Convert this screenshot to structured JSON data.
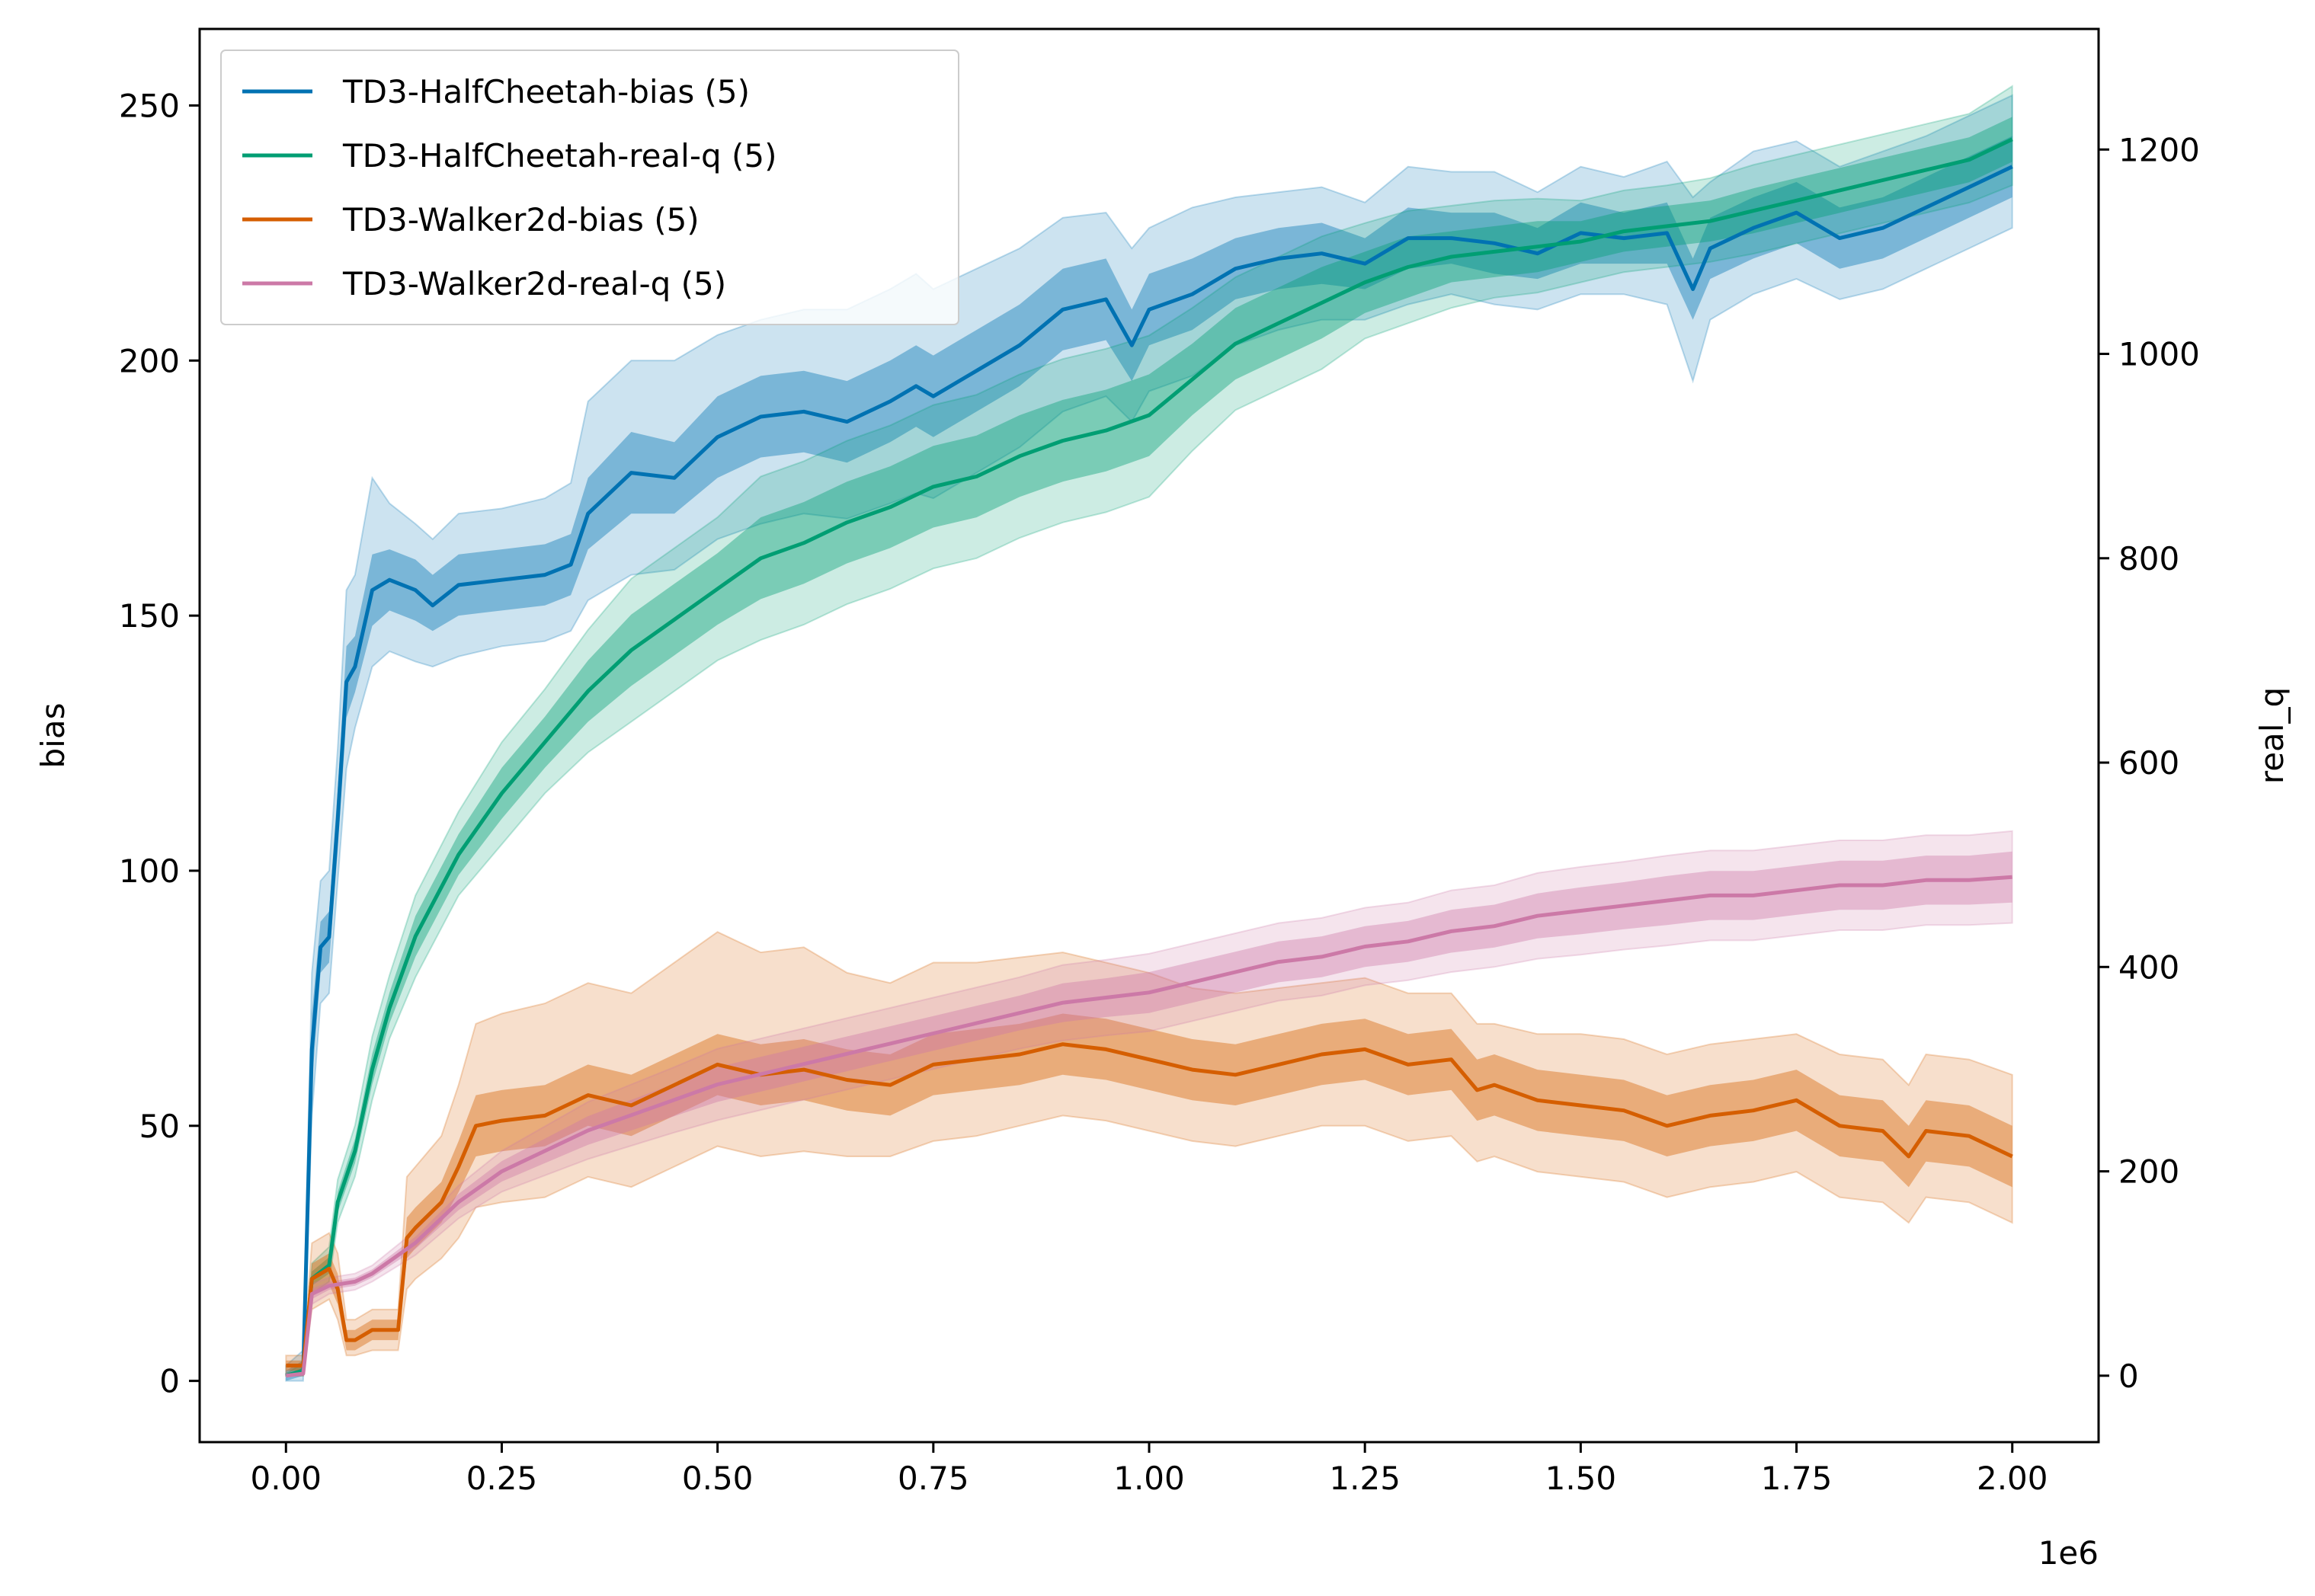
{
  "chart_data": {
    "type": "line",
    "title": "",
    "xlabel": "",
    "x_offset_label": "1e6",
    "ylabel_left": "bias",
    "ylabel_right": "real_q",
    "xlim": [
      -0.1,
      2.1
    ],
    "ylim_left": [
      -12,
      265
    ],
    "ylim_right": [
      -65,
      1318
    ],
    "x_ticks": [
      "0.00",
      "0.25",
      "0.50",
      "0.75",
      "1.00",
      "1.25",
      "1.50",
      "1.75",
      "2.00"
    ],
    "y_left_ticks": [
      "0",
      "50",
      "100",
      "150",
      "200",
      "250"
    ],
    "y_right_ticks": [
      "0",
      "200",
      "400",
      "600",
      "800",
      "1000",
      "1200"
    ],
    "grid": false,
    "legend_position": "top-left",
    "legend": [
      "TD3-HalfCheetah-bias (5)",
      "TD3-HalfCheetah-real-q (5)",
      "TD3-Walker2d-bias (5)",
      "TD3-Walker2d-real-q (5)"
    ],
    "series": [
      {
        "name": "TD3-HalfCheetah-bias (5)",
        "axis": "left",
        "color": "#0072b2",
        "x": [
          0,
          0.02,
          0.03,
          0.04,
          0.05,
          0.06,
          0.07,
          0.08,
          0.1,
          0.12,
          0.15,
          0.17,
          0.2,
          0.25,
          0.3,
          0.33,
          0.35,
          0.4,
          0.45,
          0.5,
          0.55,
          0.6,
          0.65,
          0.7,
          0.73,
          0.75,
          0.8,
          0.85,
          0.9,
          0.95,
          0.98,
          1.0,
          1.05,
          1.1,
          1.15,
          1.2,
          1.25,
          1.3,
          1.35,
          1.4,
          1.45,
          1.5,
          1.55,
          1.6,
          1.63,
          1.65,
          1.7,
          1.75,
          1.8,
          1.85,
          1.9,
          1.95,
          2.0
        ],
        "mean": [
          1,
          2,
          65,
          85,
          87,
          110,
          137,
          140,
          155,
          157,
          155,
          152,
          156,
          157,
          158,
          160,
          170,
          178,
          177,
          185,
          189,
          190,
          188,
          192,
          195,
          193,
          198,
          203,
          210,
          212,
          203,
          210,
          213,
          218,
          220,
          221,
          219,
          224,
          224,
          223,
          221,
          225,
          224,
          225,
          214,
          222,
          226,
          229,
          224,
          226,
          230,
          234,
          238
        ],
        "lower": [
          0,
          1,
          58,
          80,
          82,
          104,
          130,
          135,
          148,
          151,
          149,
          147,
          150,
          151,
          152,
          154,
          163,
          170,
          170,
          177,
          181,
          182,
          180,
          184,
          187,
          185,
          190,
          195,
          202,
          204,
          196,
          203,
          206,
          212,
          214,
          215,
          214,
          218,
          219,
          217,
          216,
          219,
          219,
          219,
          208,
          216,
          220,
          223,
          218,
          220,
          224,
          228,
          232
        ],
        "upper": [
          2,
          4,
          72,
          90,
          92,
          116,
          144,
          146,
          162,
          163,
          161,
          158,
          162,
          163,
          164,
          166,
          177,
          186,
          184,
          193,
          197,
          198,
          196,
          200,
          203,
          201,
          206,
          211,
          218,
          220,
          210,
          217,
          220,
          224,
          226,
          227,
          224,
          230,
          229,
          229,
          226,
          231,
          229,
          231,
          220,
          228,
          232,
          235,
          230,
          232,
          236,
          240,
          244
        ],
        "lower2": [
          0,
          0,
          52,
          74,
          76,
          98,
          120,
          128,
          140,
          143,
          141,
          140,
          142,
          144,
          145,
          147,
          153,
          158,
          159,
          165,
          168,
          170,
          169,
          172,
          174,
          173,
          178,
          183,
          190,
          193,
          188,
          194,
          197,
          203,
          206,
          208,
          208,
          211,
          213,
          211,
          210,
          213,
          213,
          211,
          196,
          208,
          213,
          216,
          212,
          214,
          218,
          222,
          226
        ],
        "upper2": [
          3,
          6,
          80,
          98,
          100,
          124,
          155,
          158,
          177,
          172,
          168,
          165,
          170,
          171,
          173,
          176,
          192,
          200,
          200,
          205,
          208,
          210,
          210,
          214,
          217,
          214,
          218,
          222,
          228,
          229,
          222,
          226,
          230,
          232,
          233,
          234,
          231,
          238,
          237,
          237,
          233,
          238,
          236,
          239,
          232,
          235,
          241,
          243,
          238,
          241,
          244,
          248,
          252
        ]
      },
      {
        "name": "TD3-HalfCheetah-real-q (5)",
        "axis": "right",
        "color": "#009e73",
        "x": [
          0,
          0.02,
          0.03,
          0.05,
          0.06,
          0.08,
          0.1,
          0.12,
          0.15,
          0.2,
          0.25,
          0.3,
          0.35,
          0.4,
          0.45,
          0.5,
          0.55,
          0.6,
          0.65,
          0.7,
          0.75,
          0.8,
          0.85,
          0.9,
          0.95,
          1.0,
          1.05,
          1.1,
          1.15,
          1.2,
          1.25,
          1.3,
          1.35,
          1.4,
          1.45,
          1.5,
          1.55,
          1.6,
          1.65,
          1.7,
          1.75,
          1.8,
          1.85,
          1.9,
          1.95,
          2.0
        ],
        "mean": [
          0,
          5,
          95,
          108,
          170,
          220,
          300,
          360,
          430,
          510,
          570,
          620,
          670,
          710,
          740,
          770,
          800,
          815,
          835,
          850,
          870,
          880,
          900,
          915,
          925,
          940,
          975,
          1010,
          1030,
          1050,
          1070,
          1085,
          1095,
          1100,
          1105,
          1110,
          1120,
          1125,
          1130,
          1140,
          1150,
          1160,
          1170,
          1180,
          1190,
          1210
        ],
        "lower": [
          0,
          3,
          88,
          100,
          160,
          208,
          285,
          345,
          410,
          490,
          545,
          595,
          640,
          675,
          705,
          735,
          760,
          775,
          795,
          810,
          830,
          840,
          860,
          875,
          885,
          900,
          940,
          975,
          995,
          1015,
          1040,
          1055,
          1070,
          1075,
          1080,
          1090,
          1100,
          1105,
          1110,
          1118,
          1128,
          1138,
          1148,
          1158,
          1168,
          1188
        ],
        "upper": [
          1,
          8,
          102,
          116,
          180,
          232,
          315,
          375,
          450,
          530,
          595,
          645,
          700,
          745,
          775,
          805,
          840,
          855,
          875,
          890,
          910,
          920,
          940,
          955,
          965,
          980,
          1010,
          1045,
          1065,
          1085,
          1100,
          1115,
          1120,
          1125,
          1130,
          1130,
          1140,
          1145,
          1150,
          1162,
          1172,
          1182,
          1192,
          1202,
          1212,
          1232
        ],
        "lower2": [
          0,
          0,
          80,
          92,
          150,
          195,
          270,
          330,
          390,
          470,
          520,
          570,
          610,
          640,
          670,
          700,
          720,
          735,
          755,
          770,
          790,
          800,
          820,
          835,
          845,
          860,
          905,
          945,
          965,
          985,
          1015,
          1030,
          1045,
          1055,
          1060,
          1070,
          1080,
          1085,
          1090,
          1098,
          1108,
          1118,
          1128,
          1138,
          1148,
          1165
        ],
        "upper2": [
          2,
          12,
          110,
          126,
          192,
          245,
          332,
          392,
          470,
          552,
          620,
          672,
          730,
          780,
          810,
          840,
          880,
          895,
          915,
          930,
          950,
          960,
          980,
          995,
          1005,
          1018,
          1045,
          1075,
          1095,
          1115,
          1128,
          1140,
          1145,
          1150,
          1152,
          1150,
          1160,
          1165,
          1172,
          1185,
          1195,
          1205,
          1215,
          1225,
          1235,
          1262
        ]
      },
      {
        "name": "TD3-Walker2d-bias (5)",
        "axis": "left",
        "color": "#d55e00",
        "x": [
          0,
          0.02,
          0.03,
          0.05,
          0.06,
          0.07,
          0.08,
          0.1,
          0.12,
          0.13,
          0.14,
          0.15,
          0.18,
          0.2,
          0.22,
          0.25,
          0.3,
          0.35,
          0.4,
          0.45,
          0.5,
          0.55,
          0.6,
          0.65,
          0.7,
          0.75,
          0.8,
          0.85,
          0.9,
          0.95,
          1.0,
          1.05,
          1.1,
          1.15,
          1.2,
          1.25,
          1.3,
          1.35,
          1.38,
          1.4,
          1.45,
          1.5,
          1.55,
          1.6,
          1.65,
          1.7,
          1.75,
          1.8,
          1.85,
          1.88,
          1.9,
          1.95,
          2.0
        ],
        "mean": [
          3,
          3,
          20,
          22,
          18,
          8,
          8,
          10,
          10,
          10,
          28,
          30,
          35,
          42,
          50,
          51,
          52,
          56,
          54,
          58,
          62,
          60,
          61,
          59,
          58,
          62,
          63,
          64,
          66,
          65,
          63,
          61,
          60,
          62,
          64,
          65,
          62,
          63,
          57,
          58,
          55,
          54,
          53,
          50,
          52,
          53,
          55,
          50,
          49,
          44,
          49,
          48,
          44
        ],
        "lower": [
          2,
          2,
          17,
          19,
          15,
          6,
          6,
          8,
          8,
          8,
          24,
          26,
          31,
          37,
          44,
          45,
          46,
          50,
          48,
          52,
          56,
          54,
          55,
          53,
          52,
          56,
          57,
          58,
          60,
          59,
          57,
          55,
          54,
          56,
          58,
          59,
          56,
          57,
          51,
          52,
          49,
          48,
          47,
          44,
          46,
          47,
          49,
          44,
          43,
          38,
          43,
          42,
          38
        ],
        "upper": [
          4,
          4,
          23,
          25,
          21,
          10,
          10,
          12,
          12,
          12,
          32,
          34,
          39,
          47,
          56,
          57,
          58,
          62,
          60,
          64,
          68,
          66,
          67,
          65,
          64,
          68,
          69,
          70,
          72,
          71,
          69,
          67,
          66,
          68,
          70,
          71,
          68,
          69,
          63,
          64,
          61,
          60,
          59,
          56,
          58,
          59,
          61,
          56,
          55,
          50,
          55,
          54,
          50
        ],
        "lower2": [
          1,
          1,
          14,
          16,
          12,
          5,
          5,
          6,
          6,
          6,
          18,
          20,
          24,
          28,
          34,
          35,
          36,
          40,
          38,
          42,
          46,
          44,
          45,
          44,
          44,
          47,
          48,
          50,
          52,
          51,
          49,
          47,
          46,
          48,
          50,
          50,
          47,
          48,
          43,
          44,
          41,
          40,
          39,
          36,
          38,
          39,
          41,
          36,
          35,
          31,
          36,
          35,
          31
        ],
        "upper2": [
          5,
          5,
          27,
          29,
          25,
          12,
          12,
          14,
          14,
          14,
          40,
          42,
          48,
          58,
          70,
          72,
          74,
          78,
          76,
          82,
          88,
          84,
          85,
          80,
          78,
          82,
          82,
          83,
          84,
          82,
          80,
          77,
          76,
          77,
          78,
          79,
          76,
          76,
          70,
          70,
          68,
          68,
          67,
          64,
          66,
          67,
          68,
          64,
          63,
          58,
          64,
          63,
          60
        ]
      },
      {
        "name": "TD3-Walker2d-real-q (5)",
        "axis": "right",
        "color": "#cc79a7",
        "x": [
          0,
          0.02,
          0.03,
          0.05,
          0.08,
          0.1,
          0.15,
          0.2,
          0.25,
          0.3,
          0.35,
          0.4,
          0.45,
          0.5,
          0.55,
          0.6,
          0.65,
          0.7,
          0.75,
          0.8,
          0.85,
          0.9,
          0.95,
          1.0,
          1.05,
          1.1,
          1.15,
          1.2,
          1.25,
          1.3,
          1.35,
          1.4,
          1.45,
          1.5,
          1.55,
          1.6,
          1.65,
          1.7,
          1.75,
          1.8,
          1.85,
          1.9,
          1.95,
          2.0
        ],
        "mean": [
          0,
          2,
          80,
          88,
          92,
          100,
          130,
          170,
          200,
          220,
          240,
          255,
          270,
          285,
          295,
          305,
          315,
          325,
          335,
          345,
          355,
          365,
          370,
          375,
          385,
          395,
          405,
          410,
          420,
          425,
          435,
          440,
          450,
          455,
          460,
          465,
          470,
          470,
          475,
          480,
          480,
          485,
          485,
          488
        ],
        "lower": [
          0,
          1,
          75,
          84,
          88,
          96,
          124,
          162,
          190,
          208,
          226,
          240,
          254,
          268,
          278,
          288,
          298,
          308,
          318,
          328,
          338,
          346,
          351,
          355,
          365,
          375,
          385,
          390,
          400,
          405,
          414,
          419,
          428,
          432,
          437,
          441,
          446,
          446,
          451,
          456,
          456,
          461,
          461,
          463
        ],
        "upper": [
          1,
          3,
          85,
          92,
          96,
          104,
          136,
          178,
          210,
          232,
          254,
          270,
          286,
          302,
          312,
          322,
          332,
          342,
          352,
          362,
          372,
          384,
          389,
          395,
          405,
          415,
          425,
          430,
          440,
          445,
          456,
          461,
          472,
          478,
          483,
          489,
          494,
          494,
          499,
          504,
          504,
          509,
          509,
          513
        ],
        "lower2": [
          0,
          0,
          70,
          80,
          84,
          92,
          118,
          154,
          180,
          196,
          212,
          225,
          238,
          250,
          260,
          270,
          280,
          290,
          300,
          310,
          320,
          328,
          333,
          337,
          347,
          357,
          367,
          372,
          382,
          387,
          395,
          400,
          408,
          412,
          417,
          421,
          426,
          426,
          431,
          436,
          436,
          441,
          441,
          443
        ],
        "upper2": [
          2,
          4,
          90,
          96,
          100,
          108,
          142,
          186,
          220,
          244,
          268,
          285,
          302,
          320,
          330,
          340,
          350,
          360,
          370,
          380,
          390,
          402,
          407,
          413,
          423,
          433,
          443,
          448,
          458,
          463,
          475,
          480,
          492,
          498,
          503,
          509,
          514,
          514,
          519,
          524,
          524,
          529,
          529,
          533
        ]
      }
    ]
  }
}
